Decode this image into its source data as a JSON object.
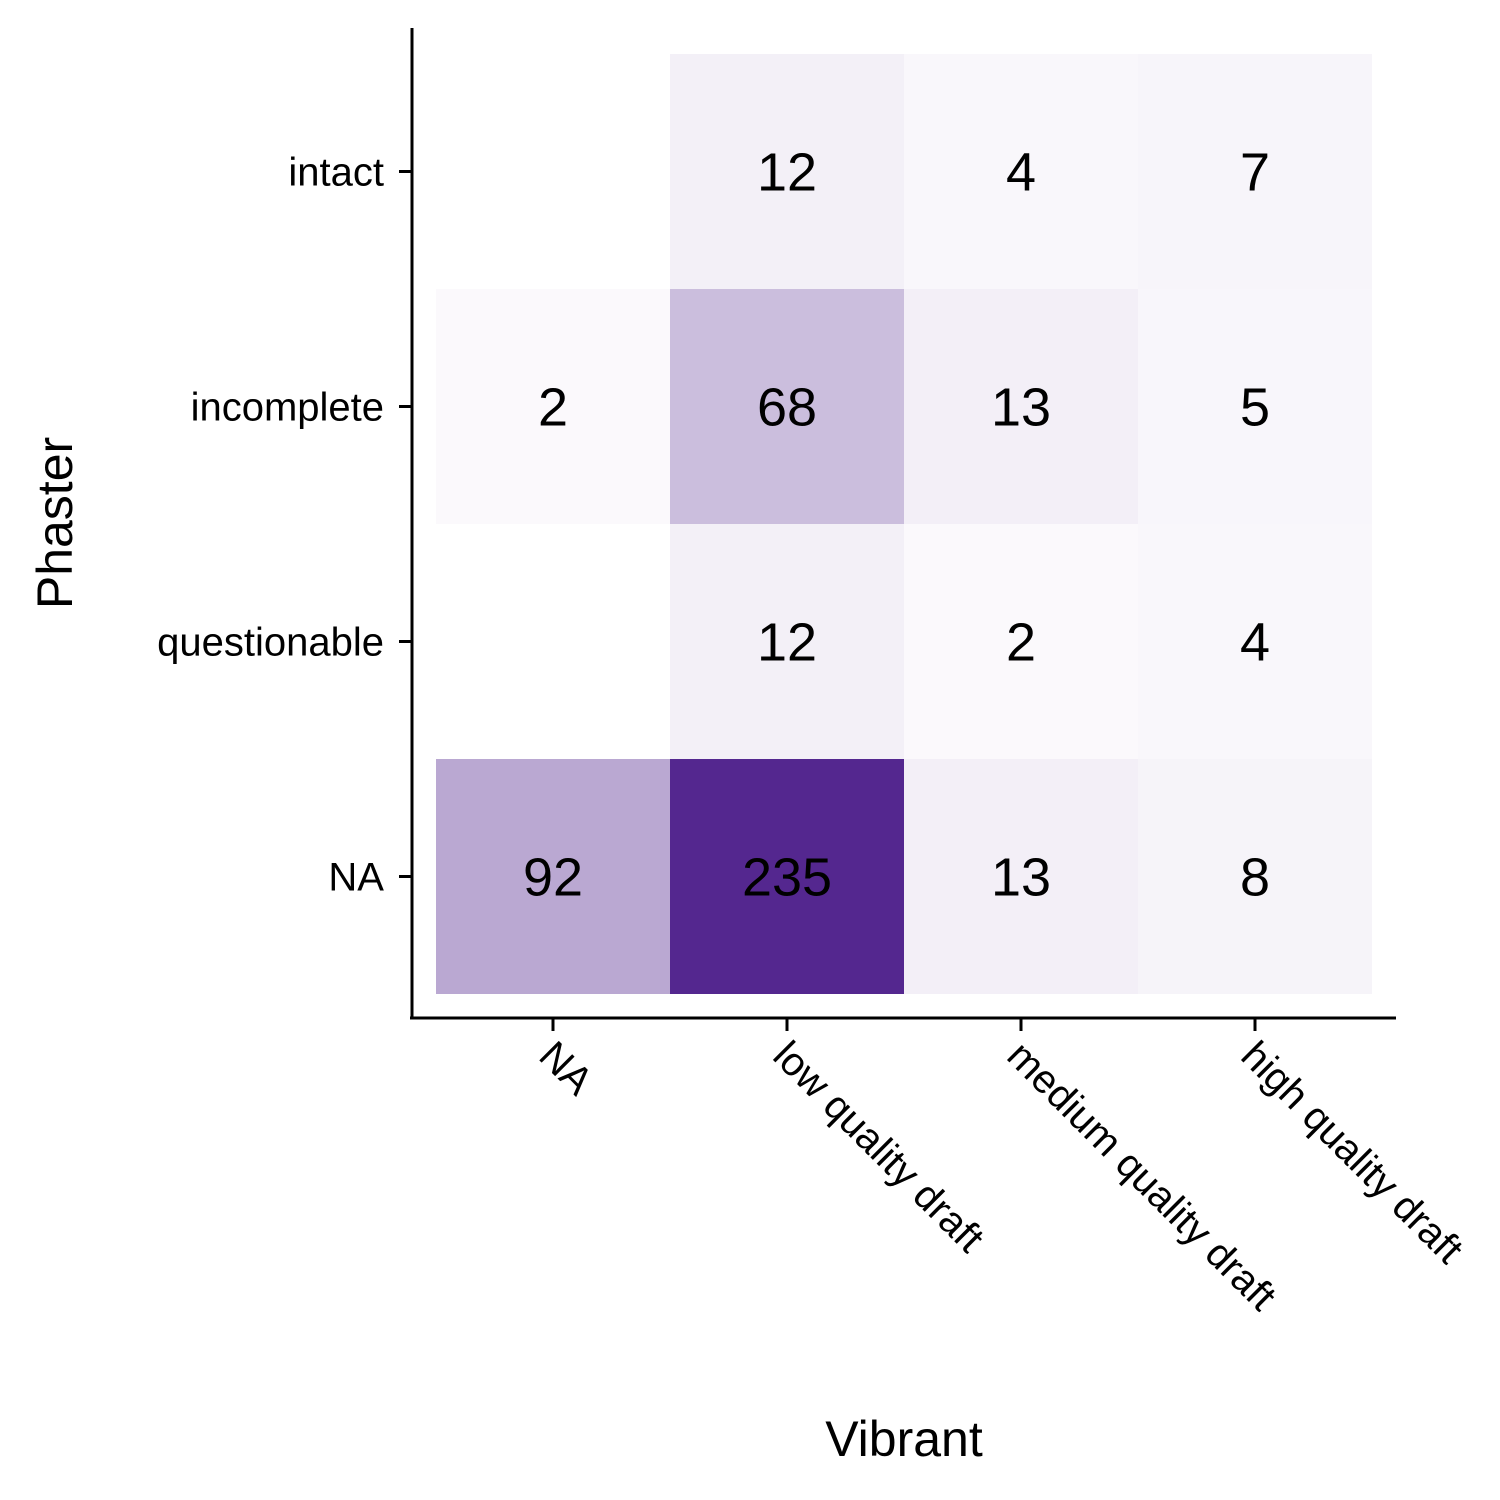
{
  "chart_data": {
    "type": "heatmap",
    "xlabel": "Vibrant",
    "ylabel": "Phaster",
    "x_categories": [
      "NA",
      "low quality draft",
      "medium quality draft",
      "high quality draft"
    ],
    "y_categories": [
      "intact",
      "incomplete",
      "questionable",
      "NA"
    ],
    "values": [
      [
        null,
        12,
        4,
        7
      ],
      [
        2,
        68,
        13,
        5
      ],
      [
        null,
        12,
        2,
        4
      ],
      [
        92,
        235,
        13,
        8
      ]
    ],
    "value_range": [
      0,
      235
    ],
    "color_low": "#fcfbfd",
    "color_high": "#54278f",
    "grid": false,
    "legend": "none"
  }
}
